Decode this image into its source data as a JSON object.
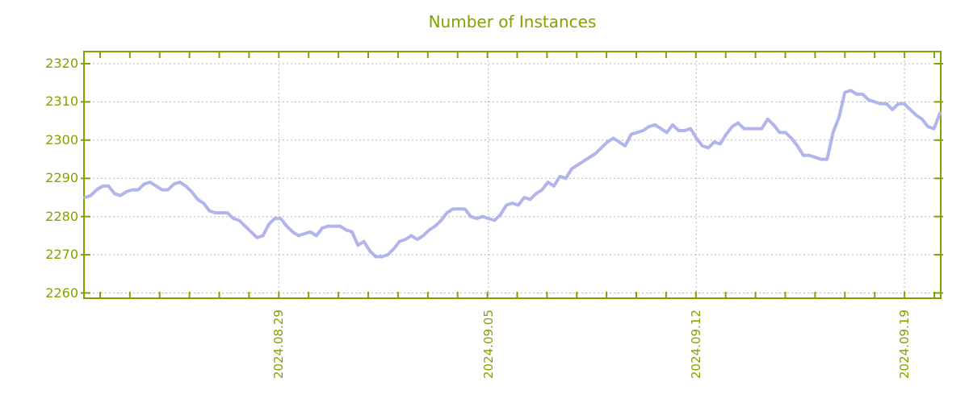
{
  "title": "Number of Instances",
  "colors": {
    "accent_green": "#7ea400",
    "line": "#b1b5ec",
    "grid": "#b5b5b5",
    "background": "#ffffff"
  },
  "y_axis": {
    "tick_labels": [
      "2320",
      "2310",
      "2300",
      "2290",
      "2280",
      "2270",
      "2260"
    ],
    "tick_values": [
      2320,
      2310,
      2300,
      2290,
      2280,
      2270,
      2260
    ]
  },
  "x_axis": {
    "tick_labels": [
      "2024.08.29",
      "2024.09.05",
      "2024.09.12",
      "2024.09.19"
    ],
    "major_fracs": [
      0.2269,
      0.4719,
      0.7151,
      0.9585
    ],
    "day_tick_first_frac": 0.0179,
    "day_tick_step_frac": 0.034838,
    "day_tick_count": 29
  },
  "chart_data": {
    "type": "line",
    "title": "Number of Instances",
    "xlabel": "",
    "ylabel": "",
    "x_tick_labels": [
      "2024.08.29",
      "2024.09.05",
      "2024.09.12",
      "2024.09.19"
    ],
    "ylim": [
      2258.85,
      2322.95
    ],
    "grid": true,
    "legend": false,
    "series_name": "Number of Instances",
    "values": [
      2285,
      2285.5,
      2287,
      2288,
      2288,
      2286,
      2285.5,
      2286.5,
      2287,
      2287,
      2288.5,
      2289,
      2288,
      2287,
      2287,
      2288.5,
      2289,
      2288,
      2286.5,
      2284.5,
      2283.5,
      2281.5,
      2281,
      2281,
      2281,
      2279.5,
      2279,
      2277.5,
      2276,
      2274.5,
      2275,
      2278,
      2279.5,
      2279.5,
      2277.5,
      2276,
      2275,
      2275.5,
      2276,
      2275,
      2277,
      2277.5,
      2277.5,
      2277.5,
      2276.5,
      2276,
      2272.5,
      2273.5,
      2271,
      2269.5,
      2269.5,
      2270,
      2271.5,
      2273.5,
      2274,
      2275,
      2274,
      2275,
      2276.5,
      2277.5,
      2279,
      2281,
      2282,
      2282,
      2282,
      2280,
      2279.5,
      2280,
      2279.5,
      2279,
      2280.5,
      2283,
      2283.5,
      2283,
      2285,
      2284.5,
      2286,
      2287,
      2289,
      2288,
      2290.5,
      2290,
      2292.5,
      2293.5,
      2294.5,
      2295.5,
      2296.5,
      2298,
      2299.5,
      2300.5,
      2299.5,
      2298.5,
      2301.5,
      2302,
      2302.5,
      2303.5,
      2304,
      2303,
      2302,
      2304,
      2302.5,
      2302.5,
      2303,
      2300.5,
      2298.5,
      2298,
      2299.5,
      2299,
      2301.5,
      2303.5,
      2304.5,
      2303,
      2303,
      2303,
      2303,
      2305.5,
      2304,
      2302,
      2302,
      2300.5,
      2298.5,
      2296,
      2296,
      2295.5,
      2295,
      2295,
      2302,
      2306,
      2312.5,
      2313,
      2312,
      2312,
      2310.5,
      2310,
      2309.5,
      2309.5,
      2308,
      2309.5,
      2309.5,
      2308,
      2306.5,
      2305.5,
      2303.5,
      2303,
      2307
    ]
  }
}
